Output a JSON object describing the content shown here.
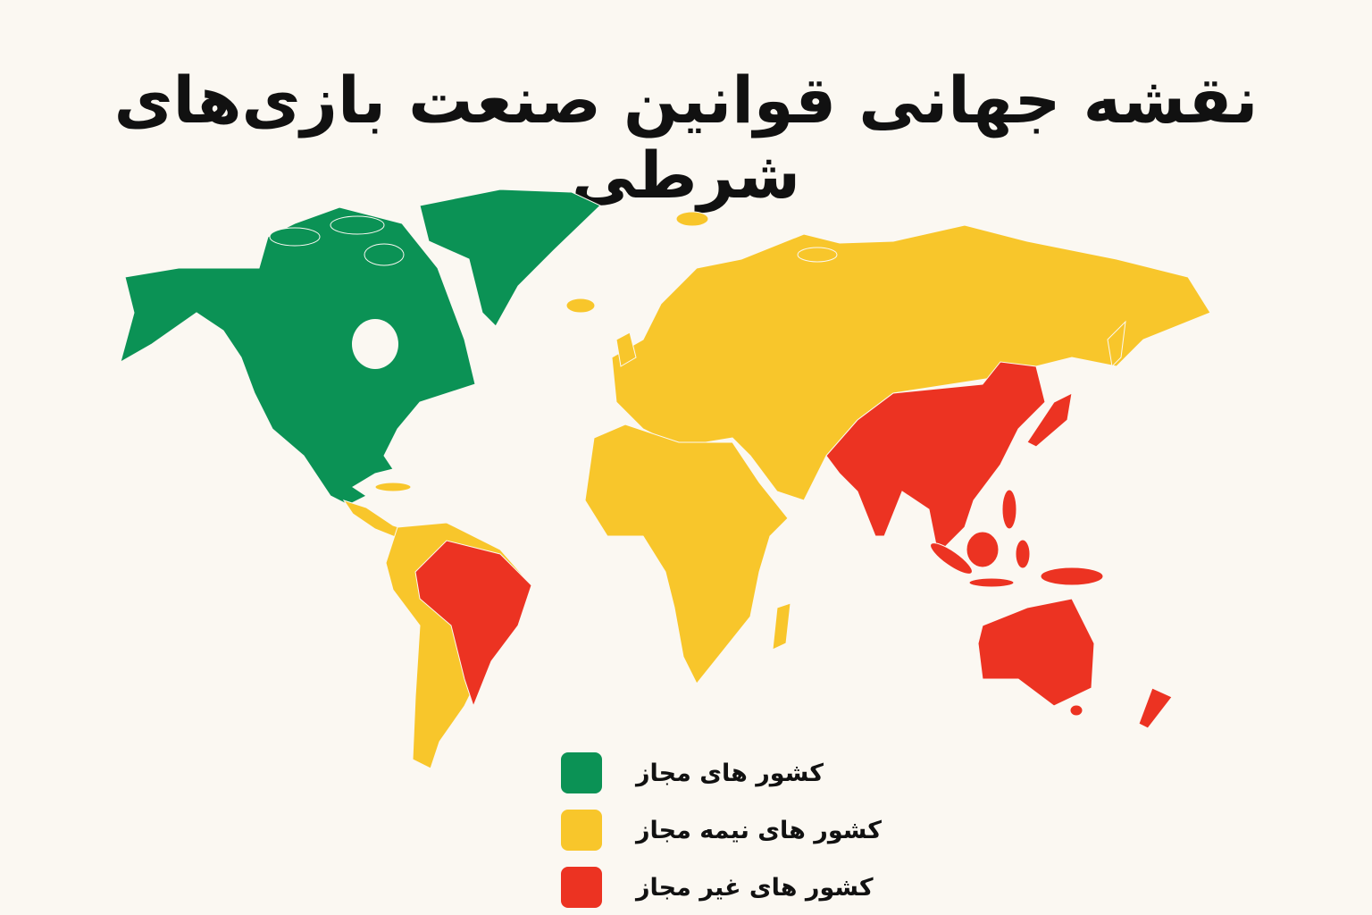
{
  "title": "نقشه جهانی قوانین صنعت بازی‌های شرطی",
  "legend": [
    {
      "label": "کشور های مجاز",
      "color": "#0b9255"
    },
    {
      "label": "کشور های نیمه مجاز",
      "color": "#f8c62b"
    },
    {
      "label": "کشور های غیر مجاز",
      "color": "#ec3322"
    }
  ],
  "regions": {
    "allowed": [
      "North America",
      "Greenland"
    ],
    "semi_allowed": [
      "Central America",
      "South America (excluding Brazil)",
      "Europe",
      "Russia",
      "Central Asia",
      "Middle East",
      "Africa"
    ],
    "not_allowed": [
      "Brazil",
      "China",
      "India",
      "Southeast Asia",
      "Japan",
      "Indonesia",
      "Australia",
      "New Zealand"
    ]
  }
}
